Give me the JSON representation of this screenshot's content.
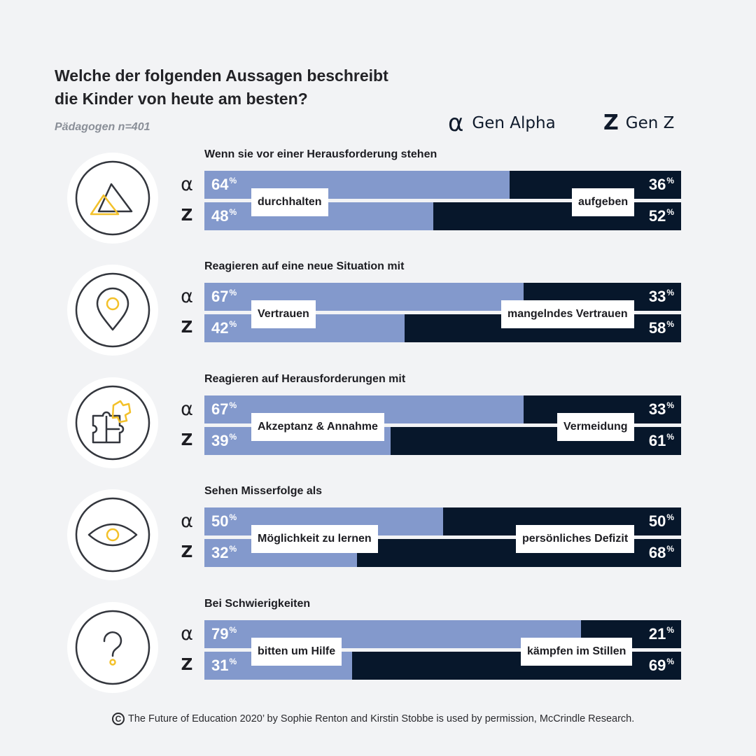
{
  "title_lines": [
    "Welche der folgenden Aussagen beschreibt",
    "die Kinder von heute am besten?"
  ],
  "subtitle": "Pädagogen n=401",
  "legend": {
    "alpha_symbol": "α",
    "alpha_label": "Gen Alpha",
    "z_symbol": "Z",
    "z_label": "Gen Z"
  },
  "colors": {
    "positive": "#8399cc",
    "negative": "#07172b",
    "accent": "#f3c12a",
    "background": "#f2f3f5"
  },
  "row_symbols": {
    "alpha": "α",
    "genz": "Z"
  },
  "percent_sign": "%",
  "footer": {
    "icon": "C",
    "text": "The Future of Education 2020’ by Sophie Renton and Kirstin Stobbe is used by permission, McCrindle Research."
  },
  "chart_data": {
    "type": "bar",
    "stacked": true,
    "orientation": "horizontal",
    "xlim": [
      0,
      100
    ],
    "series": [
      {
        "name": "Gen Alpha"
      },
      {
        "name": "Gen Z"
      }
    ],
    "questions": [
      {
        "icon": "triangles-icon",
        "label": "Wenn sie vor einer Herausforderung stehen",
        "left_label": "durchhalten",
        "right_label": "aufgeben",
        "alpha": [
          64,
          36
        ],
        "genz": [
          48,
          52
        ]
      },
      {
        "icon": "location-pin-icon",
        "label": "Reagieren auf eine neue Situation mit",
        "left_label": "Vertrauen",
        "right_label": "mangelndes Vertrauen",
        "alpha": [
          67,
          33
        ],
        "genz": [
          42,
          58
        ]
      },
      {
        "icon": "puzzle-icon",
        "label": "Reagieren auf Herausforderungen mit",
        "left_label": "Akzeptanz & Annahme",
        "right_label": "Vermeidung",
        "alpha": [
          67,
          33
        ],
        "genz": [
          39,
          61
        ]
      },
      {
        "icon": "eye-icon",
        "label": "Sehen Misserfolge als",
        "left_label": "Möglichkeit zu lernen",
        "right_label": "persönliches Defizit",
        "alpha": [
          50,
          50
        ],
        "genz": [
          32,
          68
        ]
      },
      {
        "icon": "question-mark-icon",
        "label": "Bei Schwierigkeiten",
        "left_label": "bitten um Hilfe",
        "right_label": "kämpfen im Stillen",
        "alpha": [
          79,
          21
        ],
        "genz": [
          31,
          69
        ]
      }
    ]
  }
}
